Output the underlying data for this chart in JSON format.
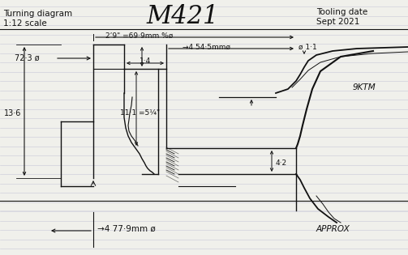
{
  "title": "M421",
  "top_left_line1": "Turning diagram",
  "top_left_line2": "1:12 scale",
  "top_right_line1": "Tooling date",
  "top_right_line2": "Sept 2021",
  "bg_color": "#f0f0eb",
  "line_color": "#111111",
  "ruled_color": "#b0b0cc",
  "label_72_3": "72·3 ø",
  "label_219": "2’9\" =69·9mm %ø",
  "label_545": "→4 54·5mmø",
  "label_11": "ø 1·1",
  "label_136": "13·6",
  "label_111": "11·1 =5¼\"",
  "label_42": "4·2",
  "label_14": "1·4",
  "label_779": "→4 77·9mm ø",
  "label_approx": "APPROX",
  "label_9ktm": "9KTM"
}
